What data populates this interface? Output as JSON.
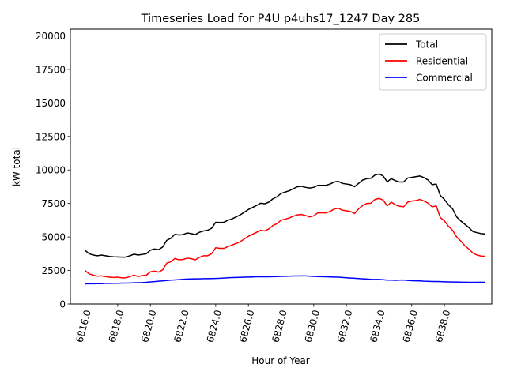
{
  "chart_data": {
    "type": "line",
    "title": "Timeseries Load for P4U p4uhs17_1247  Day 285",
    "xlabel": "Hour of Year",
    "ylabel": "kW total",
    "xlim": [
      6815.1,
      6840.9
    ],
    "ylim": [
      0,
      20500
    ],
    "x_ticks": [
      6816,
      6818,
      6820,
      6822,
      6824,
      6826,
      6828,
      6830,
      6832,
      6834,
      6836,
      6838
    ],
    "x_tick_labels": [
      "6816.0",
      "6818.0",
      "6820.0",
      "6822.0",
      "6824.0",
      "6826.0",
      "6828.0",
      "6830.0",
      "6832.0",
      "6834.0",
      "6836.0",
      "6838.0"
    ],
    "y_ticks": [
      0,
      2500,
      5000,
      7500,
      10000,
      12500,
      15000,
      17500,
      20000
    ],
    "y_tick_labels": [
      "0",
      "2500",
      "5000",
      "7500",
      "10000",
      "12500",
      "15000",
      "17500",
      "20000"
    ],
    "x_start": 6816,
    "x_step": 0.25,
    "legend_position": "top-right",
    "series": [
      {
        "name": "Total",
        "color": "#000000",
        "values": [
          4000,
          3750,
          3650,
          3600,
          3650,
          3600,
          3550,
          3520,
          3510,
          3500,
          3500,
          3600,
          3720,
          3650,
          3700,
          3750,
          4020,
          4100,
          4050,
          4250,
          4750,
          4900,
          5200,
          5150,
          5180,
          5300,
          5250,
          5180,
          5350,
          5450,
          5500,
          5650,
          6100,
          6080,
          6100,
          6250,
          6350,
          6500,
          6650,
          6850,
          7050,
          7200,
          7350,
          7520,
          7480,
          7600,
          7850,
          8000,
          8250,
          8350,
          8450,
          8600,
          8750,
          8780,
          8700,
          8650,
          8700,
          8850,
          8850,
          8850,
          8950,
          9100,
          9150,
          9000,
          8950,
          8900,
          8750,
          9000,
          9250,
          9350,
          9380,
          9620,
          9700,
          9550,
          9120,
          9350,
          9200,
          9100,
          9100,
          9400,
          9450,
          9500,
          9550,
          9430,
          9250,
          8900,
          8950,
          8100,
          7800,
          7400,
          7100,
          6500,
          6200,
          5950,
          5700,
          5400,
          5320,
          5250,
          5220
        ]
      },
      {
        "name": "Residential",
        "color": "#ff0000",
        "values": [
          2500,
          2250,
          2150,
          2080,
          2100,
          2050,
          2000,
          1980,
          2000,
          1950,
          1950,
          2050,
          2150,
          2050,
          2120,
          2150,
          2400,
          2450,
          2380,
          2550,
          3050,
          3150,
          3400,
          3300,
          3320,
          3420,
          3380,
          3300,
          3480,
          3600,
          3600,
          3750,
          4200,
          4150,
          4150,
          4280,
          4400,
          4520,
          4650,
          4850,
          5050,
          5200,
          5350,
          5500,
          5450,
          5600,
          5850,
          6000,
          6250,
          6330,
          6420,
          6550,
          6650,
          6680,
          6600,
          6500,
          6580,
          6800,
          6800,
          6800,
          6900,
          7080,
          7150,
          7000,
          6950,
          6900,
          6750,
          7100,
          7350,
          7500,
          7520,
          7800,
          7880,
          7750,
          7320,
          7600,
          7400,
          7300,
          7250,
          7600,
          7680,
          7720,
          7800,
          7680,
          7520,
          7250,
          7320,
          6450,
          6200,
          5800,
          5500,
          5000,
          4700,
          4350,
          4100,
          3800,
          3650,
          3580,
          3560
        ]
      },
      {
        "name": "Commercial",
        "color": "#0000ff",
        "values": [
          1500,
          1510,
          1510,
          1520,
          1520,
          1540,
          1540,
          1550,
          1550,
          1560,
          1560,
          1570,
          1580,
          1590,
          1600,
          1620,
          1650,
          1670,
          1700,
          1720,
          1750,
          1780,
          1800,
          1820,
          1840,
          1860,
          1870,
          1880,
          1880,
          1890,
          1890,
          1900,
          1910,
          1920,
          1940,
          1960,
          1970,
          1980,
          1990,
          2000,
          2010,
          2020,
          2030,
          2030,
          2030,
          2030,
          2040,
          2050,
          2060,
          2070,
          2080,
          2090,
          2090,
          2100,
          2100,
          2080,
          2060,
          2050,
          2040,
          2030,
          2020,
          2010,
          2000,
          1980,
          1960,
          1940,
          1920,
          1900,
          1880,
          1860,
          1840,
          1830,
          1830,
          1810,
          1780,
          1780,
          1770,
          1780,
          1790,
          1760,
          1740,
          1730,
          1720,
          1700,
          1690,
          1680,
          1680,
          1670,
          1660,
          1650,
          1640,
          1640,
          1630,
          1630,
          1620,
          1620,
          1620,
          1630,
          1620
        ]
      }
    ]
  }
}
